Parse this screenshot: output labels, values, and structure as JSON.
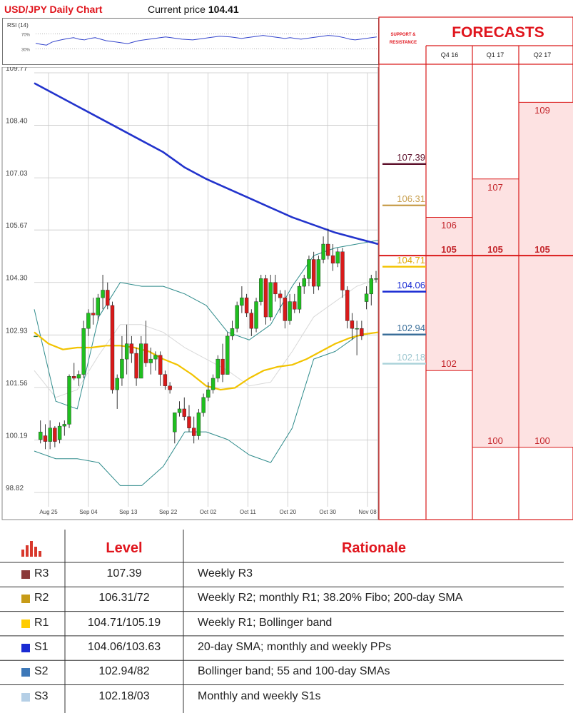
{
  "header": {
    "chart_title": "USD/JPY Daily Chart",
    "price_label": "Current price",
    "price_value": "104.41"
  },
  "rsi": {
    "label": "RSI (14)",
    "levels": [
      "70%",
      "30%"
    ]
  },
  "chart_data": {
    "type": "candlestick",
    "ylim": [
      98.82,
      109.77
    ],
    "yticks": [
      109.77,
      108.4,
      107.03,
      105.67,
      104.3,
      102.93,
      101.56,
      100.19,
      98.82
    ],
    "ytick_labels": [
      "109.77",
      "108.40",
      "107.03",
      "105.67",
      "104.30",
      "102.93",
      "101.56",
      "100.19",
      "98.82"
    ],
    "xtick_labels": [
      "Aug 25",
      "Sep 04",
      "Sep 13",
      "Sep 22",
      "Oct 02",
      "Oct 11",
      "Oct 20",
      "Oct 30",
      "Nov 08"
    ],
    "candles": [
      [
        102.9,
        102.9,
        102.9,
        102.9
      ],
      [
        100.2,
        100.7,
        100.1,
        100.4
      ],
      [
        100.3,
        100.6,
        99.95,
        100.15
      ],
      [
        100.15,
        100.7,
        99.95,
        100.5
      ],
      [
        100.5,
        100.55,
        100.0,
        100.15
      ],
      [
        100.2,
        100.65,
        100.1,
        100.55
      ],
      [
        100.55,
        100.7,
        100.3,
        100.6
      ],
      [
        100.6,
        101.9,
        100.5,
        101.85
      ],
      [
        101.85,
        102.2,
        101.75,
        101.8
      ],
      [
        101.8,
        102.0,
        101.6,
        101.9
      ],
      [
        101.9,
        103.3,
        101.8,
        103.1
      ],
      [
        103.1,
        103.6,
        102.9,
        103.5
      ],
      [
        103.5,
        103.9,
        103.2,
        103.45
      ],
      [
        103.45,
        104.0,
        103.3,
        103.9
      ],
      [
        103.9,
        104.5,
        103.6,
        104.1
      ],
      [
        104.1,
        104.3,
        103.6,
        103.7
      ],
      [
        103.7,
        103.8,
        101.4,
        101.5
      ],
      [
        101.5,
        101.9,
        101.0,
        101.8
      ],
      [
        101.8,
        102.9,
        101.6,
        102.3
      ],
      [
        102.3,
        103.2,
        101.9,
        102.7
      ],
      [
        102.7,
        102.9,
        102.2,
        102.45
      ],
      [
        102.45,
        102.6,
        101.6,
        101.8
      ],
      [
        101.8,
        102.9,
        101.8,
        102.7
      ],
      [
        102.7,
        103.3,
        102.1,
        102.2
      ],
      [
        102.2,
        102.6,
        101.9,
        102.3
      ],
      [
        102.3,
        102.5,
        102.0,
        102.4
      ],
      [
        102.4,
        102.5,
        101.6,
        101.9
      ],
      [
        101.9,
        102.0,
        101.5,
        101.6
      ],
      [
        101.6,
        101.7,
        101.4,
        101.5
      ],
      [
        100.4,
        100.9,
        100.1,
        100.9
      ],
      [
        100.9,
        101.2,
        100.8,
        101.0
      ],
      [
        101.0,
        101.3,
        100.7,
        100.8
      ],
      [
        100.8,
        101.1,
        100.4,
        100.5
      ],
      [
        100.5,
        100.8,
        100.1,
        100.3
      ],
      [
        100.3,
        101.0,
        100.2,
        100.9
      ],
      [
        100.9,
        101.4,
        100.8,
        101.3
      ],
      [
        101.3,
        101.7,
        101.2,
        101.5
      ],
      [
        101.5,
        101.9,
        101.4,
        101.8
      ],
      [
        101.8,
        102.4,
        101.7,
        102.3
      ],
      [
        102.3,
        102.7,
        101.7,
        101.9
      ],
      [
        101.9,
        103.0,
        101.9,
        102.9
      ],
      [
        102.9,
        103.3,
        102.8,
        103.1
      ],
      [
        103.1,
        103.8,
        103.0,
        103.7
      ],
      [
        103.7,
        104.2,
        103.5,
        103.9
      ],
      [
        103.9,
        104.0,
        103.4,
        103.5
      ],
      [
        103.5,
        103.6,
        102.9,
        103.1
      ],
      [
        103.1,
        103.9,
        103.0,
        103.8
      ],
      [
        103.8,
        104.5,
        103.7,
        104.4
      ],
      [
        104.4,
        104.5,
        103.2,
        103.4
      ],
      [
        103.4,
        104.5,
        103.3,
        104.3
      ],
      [
        104.3,
        104.5,
        103.8,
        104.0
      ],
      [
        104.0,
        104.1,
        103.5,
        103.9
      ],
      [
        103.9,
        104.1,
        103.1,
        103.3
      ],
      [
        103.3,
        104.0,
        103.2,
        103.8
      ],
      [
        103.8,
        104.0,
        103.5,
        103.6
      ],
      [
        103.6,
        104.3,
        103.5,
        104.2
      ],
      [
        104.2,
        104.5,
        104.0,
        104.4
      ],
      [
        104.4,
        105.0,
        104.2,
        104.9
      ],
      [
        104.9,
        105.1,
        104.0,
        104.2
      ],
      [
        104.2,
        105.0,
        104.1,
        104.9
      ],
      [
        104.9,
        105.5,
        104.8,
        105.3
      ],
      [
        105.3,
        105.7,
        104.9,
        105.0
      ],
      [
        105.0,
        105.3,
        104.6,
        104.8
      ],
      [
        104.8,
        105.2,
        104.7,
        105.1
      ],
      [
        105.1,
        105.2,
        103.9,
        104.1
      ],
      [
        104.1,
        104.2,
        103.1,
        103.3
      ],
      [
        103.3,
        103.5,
        102.8,
        103.1
      ],
      [
        103.1,
        103.3,
        102.4,
        103.1
      ],
      [
        103.1,
        103.3,
        102.8,
        102.9
      ],
      [
        103.8,
        104.2,
        103.6,
        104.0
      ],
      [
        104.0,
        104.5,
        103.7,
        104.4
      ],
      [
        104.4,
        104.6,
        104.3,
        104.4
      ]
    ],
    "sma200": [
      109.5,
      109.2,
      108.9,
      108.6,
      108.3,
      108.0,
      107.7,
      107.3,
      107.0,
      106.75,
      106.5,
      106.25,
      106.0,
      105.8,
      105.6,
      105.45,
      105.3
    ],
    "sma55": [
      103.0,
      102.7,
      102.55,
      102.6,
      102.6,
      102.65,
      102.65,
      102.6,
      102.5,
      102.3,
      102.15,
      101.9,
      101.6,
      101.5,
      101.55,
      101.8,
      102.0,
      102.1,
      102.15,
      102.3,
      102.5,
      102.7,
      102.85,
      102.95,
      103.0
    ],
    "bb_upper": [
      103.6,
      101.2,
      101.0,
      103.4,
      104.3,
      104.2,
      104.2,
      104.0,
      103.7,
      103.0,
      102.8,
      103.2,
      104.2,
      105.0,
      105.2,
      105.3,
      105.4
    ],
    "bb_mid": [
      102.0,
      101.3,
      101.5,
      102.4,
      103.2,
      103.2,
      103.0,
      102.6,
      102.3,
      102.0,
      101.6,
      101.7,
      102.5,
      103.4,
      103.8,
      104.2,
      104.4
    ],
    "bb_lower": [
      99.9,
      99.7,
      99.7,
      99.6,
      99.0,
      99.0,
      99.5,
      100.4,
      100.4,
      100.2,
      99.8,
      99.6,
      100.5,
      102.3,
      102.5,
      102.9,
      103.0
    ],
    "rsi_values": [
      45,
      42,
      40,
      48,
      52,
      55,
      58,
      60,
      56,
      54,
      58,
      60,
      56,
      52,
      50,
      48,
      46,
      44,
      48,
      52,
      54,
      56,
      58,
      60,
      62,
      60,
      58,
      56,
      55,
      54,
      56,
      58,
      60,
      62,
      64,
      63,
      62,
      60,
      58,
      60,
      62,
      64,
      66,
      64,
      62,
      60,
      58,
      60,
      58,
      56,
      58,
      60,
      62,
      64,
      66,
      65,
      63,
      60,
      56,
      54,
      56,
      58,
      60,
      62
    ],
    "sr_lines": [
      {
        "label": "107.39",
        "value": 107.39,
        "color": "#5c0f2a"
      },
      {
        "label": "106.31",
        "value": 106.31,
        "color": "#c9a050"
      },
      {
        "label": "104.71",
        "value": 104.71,
        "color": "#f2c300"
      },
      {
        "label": "104.06",
        "value": 104.06,
        "color": "#1a2bd3"
      },
      {
        "label": "102.94",
        "value": 102.94,
        "color": "#3a6e99"
      },
      {
        "label": "102.18",
        "value": 102.18,
        "color": "#a9d2d9"
      }
    ]
  },
  "forecast": {
    "title": "FORECASTS",
    "sr_title": "SUPPORT & RESISTANCE",
    "columns": [
      {
        "label": "Q4 16",
        "high": "106",
        "mid": "105",
        "low": "102",
        "high_value": 106,
        "low_value": 102
      },
      {
        "label": "Q1 17",
        "high": "107",
        "mid": "105",
        "low": "100",
        "high_value": 107,
        "low_value": 100
      },
      {
        "label": "Q2 17",
        "high": "109",
        "mid": "105",
        "low": "100",
        "high_value": 109,
        "low_value": 100
      }
    ],
    "mid_value": 105
  },
  "table": {
    "header": {
      "level": "Level",
      "rationale": "Rationale"
    },
    "rows": [
      {
        "code": "R3",
        "level": "107.39",
        "rationale": "Weekly R3",
        "color": "#8b3a3a"
      },
      {
        "code": "R2",
        "level": "106.31/72",
        "rationale": "Weekly R2; monthly R1; 38.20% Fibo; 200-day SMA",
        "color": "#c79b17"
      },
      {
        "code": "R1",
        "level": "104.71/105.19",
        "rationale": "Weekly R1; Bollinger band",
        "color": "#ffcc00"
      },
      {
        "code": "S1",
        "level": "104.06/103.63",
        "rationale": "20-day SMA; monthly and weekly PPs",
        "color": "#1a2bd3"
      },
      {
        "code": "S2",
        "level": "102.94/82",
        "rationale": "Bollinger band; 55 and 100-day SMAs",
        "color": "#3d78b8"
      },
      {
        "code": "S3",
        "level": "102.18/03",
        "rationale": "Monthly and weekly S1s",
        "color": "#b5cfe6"
      }
    ]
  }
}
